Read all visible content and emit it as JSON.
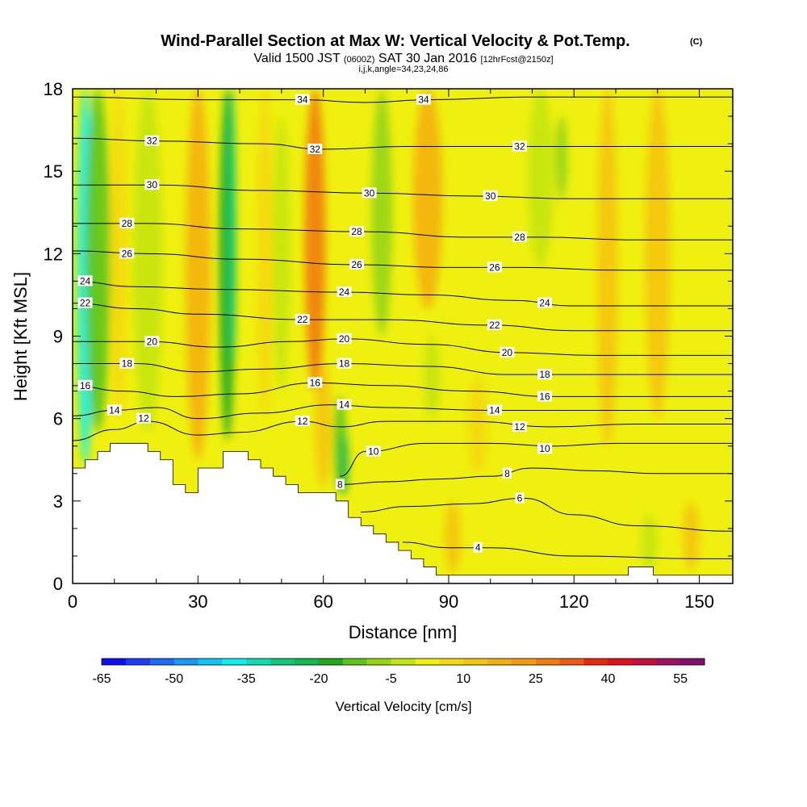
{
  "chart_data": {
    "type": "heatmap",
    "title": "Wind-Parallel Section at Max W: Vertical Velocity & Pot.Temp.",
    "title_tag": "(C)",
    "subtitle": {
      "lead": "Valid 1500 JST",
      "zulu": "(0600Z)",
      "date": "SAT 30 Jan 2016",
      "fcst": "[12hrFcst@2150z]"
    },
    "ijk": "i,j,k,angle=34,23,24,86",
    "xlabel": "Distance [nm]",
    "ylabel": "Height [Kft MSL]",
    "xlim": [
      0,
      158
    ],
    "ylim": [
      0,
      18
    ],
    "x_ticks": [
      0,
      30,
      60,
      90,
      120,
      150
    ],
    "y_ticks": [
      0,
      3,
      6,
      9,
      12,
      15,
      18
    ],
    "x_tick_labels": [
      "0",
      "30",
      "60",
      "90",
      "120",
      "150"
    ],
    "y_tick_labels": [
      "0",
      "3",
      "6",
      "9",
      "12",
      "15",
      "18"
    ],
    "colorbar": {
      "label": "Vertical Velocity [cm/s]",
      "tick_labels": [
        "-65",
        "-50",
        "-35",
        "-20",
        "-5",
        "10",
        "25",
        "40",
        "55"
      ],
      "levels": [
        -65,
        -60,
        -55,
        -50,
        -45,
        -40,
        -35,
        -30,
        -25,
        -20,
        -15,
        -10,
        -5,
        0,
        5,
        10,
        15,
        20,
        25,
        30,
        35,
        40,
        45,
        50,
        55,
        60
      ],
      "colors": [
        "#1010ee",
        "#1f3cf4",
        "#1a6cf6",
        "#1898f8",
        "#10c4f8",
        "#10eeee",
        "#10dcb4",
        "#10c878",
        "#14b850",
        "#22a820",
        "#5cc41c",
        "#96d414",
        "#c4e410",
        "#f0f010",
        "#f4d810",
        "#f4c410",
        "#f4b010",
        "#f49a10",
        "#f07c10",
        "#ee5a14",
        "#e82a10",
        "#e0101c",
        "#c41040",
        "#a01060",
        "#801070"
      ]
    },
    "terrain": [
      [
        0,
        4.2
      ],
      [
        3,
        4.2
      ],
      [
        3,
        4.5
      ],
      [
        6,
        4.5
      ],
      [
        6,
        4.8
      ],
      [
        9,
        4.8
      ],
      [
        9,
        5.1
      ],
      [
        18,
        5.1
      ],
      [
        18,
        4.8
      ],
      [
        21,
        4.8
      ],
      [
        21,
        4.5
      ],
      [
        24,
        4.5
      ],
      [
        24,
        3.6
      ],
      [
        27,
        3.6
      ],
      [
        27,
        3.3
      ],
      [
        30,
        3.3
      ],
      [
        30,
        4.2
      ],
      [
        36,
        4.2
      ],
      [
        36,
        4.8
      ],
      [
        42,
        4.8
      ],
      [
        42,
        4.5
      ],
      [
        45,
        4.5
      ],
      [
        45,
        4.2
      ],
      [
        48,
        4.2
      ],
      [
        48,
        3.9
      ],
      [
        51,
        3.9
      ],
      [
        51,
        3.6
      ],
      [
        54,
        3.6
      ],
      [
        54,
        3.3
      ],
      [
        63,
        3.3
      ],
      [
        63,
        3.0
      ],
      [
        66,
        3.0
      ],
      [
        66,
        2.4
      ],
      [
        69,
        2.4
      ],
      [
        69,
        2.1
      ],
      [
        72,
        2.1
      ],
      [
        72,
        1.8
      ],
      [
        75,
        1.8
      ],
      [
        75,
        1.5
      ],
      [
        78,
        1.5
      ],
      [
        78,
        1.2
      ],
      [
        81,
        1.2
      ],
      [
        81,
        0.9
      ],
      [
        84,
        0.9
      ],
      [
        84,
        0.6
      ],
      [
        87,
        0.6
      ],
      [
        87,
        0.3
      ],
      [
        90,
        0.3
      ],
      [
        90,
        0.3
      ],
      [
        133,
        0.3
      ],
      [
        133,
        0.6
      ],
      [
        139,
        0.6
      ],
      [
        139,
        0.3
      ],
      [
        158,
        0.3
      ]
    ],
    "w_features": [
      {
        "x": 3,
        "y0": 4.3,
        "y1": 18,
        "width": 4,
        "w": -40
      },
      {
        "x": 6,
        "y0": 5.5,
        "y1": 18,
        "width": 6,
        "w": -15
      },
      {
        "x": 18,
        "y0": 5.5,
        "y1": 18,
        "width": 7,
        "w": -5
      },
      {
        "x": 11,
        "y0": 6,
        "y1": 18,
        "width": 4,
        "w": 5
      },
      {
        "x": 30,
        "y0": 4.5,
        "y1": 18,
        "width": 6,
        "w": 15
      },
      {
        "x": 37,
        "y0": 5.2,
        "y1": 18,
        "width": 4,
        "w": -20
      },
      {
        "x": 38,
        "y0": 8,
        "y1": 18,
        "width": 2,
        "w": -30
      },
      {
        "x": 46,
        "y0": 6,
        "y1": 18,
        "width": 4,
        "w": 5
      },
      {
        "x": 50,
        "y0": 7,
        "y1": 17,
        "width": 4,
        "w": -5
      },
      {
        "x": 58,
        "y0": 7,
        "y1": 18,
        "width": 5,
        "w": 25
      },
      {
        "x": 60,
        "y0": 3.5,
        "y1": 8,
        "width": 4,
        "w": 10
      },
      {
        "x": 64,
        "y0": 3.3,
        "y1": 6.8,
        "width": 3,
        "w": -15
      },
      {
        "x": 65,
        "y0": 3.2,
        "y1": 5.5,
        "width": 2,
        "w": -25
      },
      {
        "x": 74,
        "y0": 9,
        "y1": 18,
        "width": 5,
        "w": -10
      },
      {
        "x": 85,
        "y0": 10,
        "y1": 18,
        "width": 7,
        "w": 15
      },
      {
        "x": 86,
        "y0": 6,
        "y1": 9,
        "width": 4,
        "w": -5
      },
      {
        "x": 112,
        "y0": 11.5,
        "y1": 18,
        "width": 6,
        "w": -5
      },
      {
        "x": 117,
        "y0": 14,
        "y1": 17,
        "width": 3,
        "w": -10
      },
      {
        "x": 97,
        "y0": 4,
        "y1": 7.5,
        "width": 5,
        "w": 5
      },
      {
        "x": 128,
        "y0": 5,
        "y1": 18,
        "width": 5,
        "w": 10
      },
      {
        "x": 140,
        "y0": 6,
        "y1": 18,
        "width": 6,
        "w": 10
      },
      {
        "x": 91,
        "y0": 0.4,
        "y1": 3,
        "width": 4,
        "w": 10
      },
      {
        "x": 138,
        "y0": 0.5,
        "y1": 2.5,
        "width": 4,
        "w": -5
      },
      {
        "x": 148,
        "y0": 0.5,
        "y1": 3,
        "width": 4,
        "w": 10
      }
    ],
    "isentropes": [
      {
        "level": 4,
        "points": [
          [
            79,
            1.5
          ],
          [
            90,
            1.3
          ],
          [
            100,
            1.3
          ],
          [
            120,
            1.0
          ],
          [
            150,
            0.9
          ],
          [
            158,
            0.9
          ]
        ]
      },
      {
        "level": 6,
        "points": [
          [
            69,
            2.6
          ],
          [
            80,
            2.8
          ],
          [
            95,
            2.9
          ],
          [
            108,
            3.1
          ],
          [
            120,
            2.5
          ],
          [
            135,
            2.1
          ],
          [
            158,
            1.9
          ]
        ]
      },
      {
        "level": 8,
        "points": [
          [
            64,
            3.6
          ],
          [
            75,
            3.7
          ],
          [
            88,
            3.8
          ],
          [
            100,
            3.9
          ],
          [
            110,
            4.2
          ],
          [
            125,
            4.1
          ],
          [
            140,
            4.0
          ],
          [
            158,
            4.0
          ]
        ]
      },
      {
        "level": 10,
        "points": [
          [
            64,
            3.9
          ],
          [
            70,
            4.8
          ],
          [
            85,
            5.1
          ],
          [
            100,
            5.1
          ],
          [
            115,
            5.0
          ],
          [
            130,
            5.1
          ],
          [
            158,
            5.1
          ]
        ]
      },
      {
        "level": 12,
        "points": [
          [
            0,
            5.2
          ],
          [
            10,
            5.6
          ],
          [
            18,
            5.9
          ],
          [
            30,
            5.4
          ],
          [
            40,
            5.5
          ],
          [
            55,
            5.9
          ],
          [
            64,
            5.7
          ],
          [
            75,
            5.9
          ],
          [
            95,
            5.9
          ],
          [
            115,
            5.7
          ],
          [
            135,
            5.8
          ],
          [
            158,
            5.8
          ]
        ]
      },
      {
        "level": 14,
        "points": [
          [
            0,
            6.1
          ],
          [
            10,
            6.3
          ],
          [
            20,
            6.4
          ],
          [
            30,
            6.0
          ],
          [
            45,
            6.2
          ],
          [
            62,
            6.5
          ],
          [
            75,
            6.4
          ],
          [
            100,
            6.3
          ],
          [
            120,
            6.3
          ],
          [
            158,
            6.3
          ]
        ]
      },
      {
        "level": 16,
        "points": [
          [
            0,
            7.2
          ],
          [
            12,
            7.0
          ],
          [
            25,
            6.8
          ],
          [
            40,
            6.9
          ],
          [
            58,
            7.3
          ],
          [
            75,
            7.2
          ],
          [
            95,
            7.0
          ],
          [
            115,
            6.8
          ],
          [
            158,
            6.8
          ]
        ]
      },
      {
        "level": 18,
        "points": [
          [
            0,
            8.0
          ],
          [
            15,
            8.0
          ],
          [
            30,
            7.7
          ],
          [
            45,
            7.8
          ],
          [
            65,
            8.0
          ],
          [
            85,
            7.9
          ],
          [
            105,
            7.6
          ],
          [
            125,
            7.6
          ],
          [
            158,
            7.6
          ]
        ]
      },
      {
        "level": 20,
        "points": [
          [
            0,
            8.8
          ],
          [
            18,
            8.8
          ],
          [
            35,
            8.6
          ],
          [
            52,
            8.8
          ],
          [
            65,
            8.9
          ],
          [
            85,
            8.7
          ],
          [
            105,
            8.4
          ],
          [
            125,
            8.3
          ],
          [
            158,
            8.3
          ]
        ]
      },
      {
        "level": 22,
        "points": [
          [
            0,
            10.2
          ],
          [
            15,
            10.0
          ],
          [
            30,
            9.8
          ],
          [
            55,
            9.6
          ],
          [
            75,
            9.6
          ],
          [
            100,
            9.4
          ],
          [
            120,
            9.2
          ],
          [
            158,
            9.2
          ]
        ]
      },
      {
        "level": 24,
        "points": [
          [
            0,
            11.0
          ],
          [
            15,
            10.8
          ],
          [
            35,
            10.7
          ],
          [
            65,
            10.6
          ],
          [
            85,
            10.5
          ],
          [
            105,
            10.3
          ],
          [
            120,
            10.1
          ],
          [
            158,
            10.1
          ]
        ]
      },
      {
        "level": 26,
        "points": [
          [
            0,
            12.1
          ],
          [
            18,
            12.0
          ],
          [
            40,
            11.8
          ],
          [
            68,
            11.6
          ],
          [
            90,
            11.5
          ],
          [
            108,
            11.5
          ],
          [
            130,
            11.4
          ],
          [
            158,
            11.4
          ]
        ]
      },
      {
        "level": 28,
        "points": [
          [
            0,
            13.1
          ],
          [
            18,
            13.1
          ],
          [
            40,
            12.9
          ],
          [
            70,
            12.8
          ],
          [
            95,
            12.6
          ],
          [
            112,
            12.6
          ],
          [
            135,
            12.5
          ],
          [
            158,
            12.5
          ]
        ]
      },
      {
        "level": 30,
        "points": [
          [
            0,
            14.5
          ],
          [
            20,
            14.5
          ],
          [
            45,
            14.3
          ],
          [
            72,
            14.2
          ],
          [
            95,
            14.1
          ],
          [
            120,
            14.0
          ],
          [
            158,
            14.0
          ]
        ]
      },
      {
        "level": 32,
        "points": [
          [
            0,
            16.2
          ],
          [
            20,
            16.1
          ],
          [
            45,
            16.0
          ],
          [
            60,
            15.8
          ],
          [
            80,
            15.9
          ],
          [
            105,
            15.9
          ],
          [
            125,
            15.9
          ],
          [
            158,
            15.9
          ]
        ]
      },
      {
        "level": 34,
        "points": [
          [
            0,
            17.7
          ],
          [
            30,
            17.6
          ],
          [
            55,
            17.6
          ],
          [
            70,
            17.5
          ],
          [
            85,
            17.6
          ],
          [
            110,
            17.7
          ],
          [
            158,
            17.7
          ]
        ]
      }
    ],
    "contour_labels": [
      {
        "text": "34",
        "x": 55,
        "y": 17.6
      },
      {
        "text": "34",
        "x": 84,
        "y": 17.6
      },
      {
        "text": "32",
        "x": 19,
        "y": 16.1
      },
      {
        "text": "32",
        "x": 58,
        "y": 15.8
      },
      {
        "text": "32",
        "x": 107,
        "y": 15.9
      },
      {
        "text": "30",
        "x": 19,
        "y": 14.5
      },
      {
        "text": "30",
        "x": 71,
        "y": 14.2
      },
      {
        "text": "30",
        "x": 100,
        "y": 14.1
      },
      {
        "text": "28",
        "x": 13,
        "y": 13.1
      },
      {
        "text": "28",
        "x": 68,
        "y": 12.8
      },
      {
        "text": "28",
        "x": 107,
        "y": 12.6
      },
      {
        "text": "26",
        "x": 13,
        "y": 12.0
      },
      {
        "text": "26",
        "x": 68,
        "y": 11.6
      },
      {
        "text": "26",
        "x": 101,
        "y": 11.5
      },
      {
        "text": "24",
        "x": 3,
        "y": 11.0
      },
      {
        "text": "24",
        "x": 65,
        "y": 10.6
      },
      {
        "text": "24",
        "x": 113,
        "y": 10.2
      },
      {
        "text": "22",
        "x": 3,
        "y": 10.2
      },
      {
        "text": "22",
        "x": 55,
        "y": 9.6
      },
      {
        "text": "22",
        "x": 101,
        "y": 9.4
      },
      {
        "text": "20",
        "x": 19,
        "y": 8.8
      },
      {
        "text": "20",
        "x": 65,
        "y": 8.9
      },
      {
        "text": "20",
        "x": 104,
        "y": 8.4
      },
      {
        "text": "18",
        "x": 13,
        "y": 8.0
      },
      {
        "text": "18",
        "x": 65,
        "y": 8.0
      },
      {
        "text": "18",
        "x": 113,
        "y": 7.6
      },
      {
        "text": "16",
        "x": 3,
        "y": 7.2
      },
      {
        "text": "16",
        "x": 58,
        "y": 7.3
      },
      {
        "text": "16",
        "x": 113,
        "y": 6.8
      },
      {
        "text": "14",
        "x": 10,
        "y": 6.3
      },
      {
        "text": "14",
        "x": 65,
        "y": 6.5
      },
      {
        "text": "14",
        "x": 101,
        "y": 6.3
      },
      {
        "text": "12",
        "x": 17,
        "y": 6.0
      },
      {
        "text": "12",
        "x": 55,
        "y": 5.9
      },
      {
        "text": "12",
        "x": 107,
        "y": 5.7
      },
      {
        "text": "10",
        "x": 72,
        "y": 4.8
      },
      {
        "text": "10",
        "x": 113,
        "y": 4.9
      },
      {
        "text": "8",
        "x": 64,
        "y": 3.6
      },
      {
        "text": "8",
        "x": 104,
        "y": 4.0
      },
      {
        "text": "6",
        "x": 107,
        "y": 3.1
      },
      {
        "text": "4",
        "x": 97,
        "y": 1.3
      }
    ]
  }
}
